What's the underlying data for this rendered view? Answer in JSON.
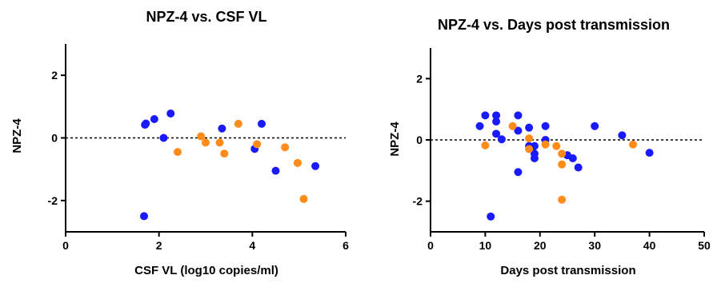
{
  "colors": {
    "group_a": "#1a1aff",
    "group_b": "#ff8c1a",
    "axis": "#000000"
  },
  "chart_data": [
    {
      "type": "scatter",
      "title": "NPZ-4 vs. CSF VL",
      "xlabel": "CSF VL (log10 copies/ml)",
      "ylabel": "NPZ-4",
      "xlim": [
        0,
        6
      ],
      "ylim": [
        -3,
        3
      ],
      "xticks": [
        0,
        2,
        4,
        6
      ],
      "yticks": [
        -2,
        0,
        2
      ],
      "reference_line": {
        "y": 0,
        "style": "dotted"
      },
      "series": [
        {
          "color": "#1a1aff",
          "points": [
            {
              "x": 1.7,
              "y": 0.42
            },
            {
              "x": 1.72,
              "y": 0.46
            },
            {
              "x": 1.9,
              "y": 0.6
            },
            {
              "x": 2.25,
              "y": 0.78
            },
            {
              "x": 2.1,
              "y": 0.0
            },
            {
              "x": 3.35,
              "y": 0.3
            },
            {
              "x": 4.2,
              "y": 0.45
            },
            {
              "x": 4.05,
              "y": -0.35
            },
            {
              "x": 4.5,
              "y": -1.05
            },
            {
              "x": 5.35,
              "y": -0.9
            },
            {
              "x": 1.68,
              "y": -2.5
            }
          ]
        },
        {
          "color": "#ff8c1a",
          "points": [
            {
              "x": 2.4,
              "y": -0.45
            },
            {
              "x": 2.9,
              "y": 0.05
            },
            {
              "x": 3.0,
              "y": -0.15
            },
            {
              "x": 3.3,
              "y": -0.15
            },
            {
              "x": 3.4,
              "y": -0.5
            },
            {
              "x": 3.7,
              "y": 0.45
            },
            {
              "x": 4.1,
              "y": -0.2
            },
            {
              "x": 4.7,
              "y": -0.3
            },
            {
              "x": 4.97,
              "y": -0.8
            },
            {
              "x": 5.1,
              "y": -1.95
            }
          ]
        }
      ]
    },
    {
      "type": "scatter",
      "title": "NPZ-4 vs. Days post transmission",
      "xlabel": "Days post transmission",
      "ylabel": "NPZ-4",
      "xlim": [
        0,
        50
      ],
      "ylim": [
        -3,
        3
      ],
      "xticks": [
        0,
        10,
        20,
        30,
        40,
        50
      ],
      "yticks": [
        -2,
        0,
        2
      ],
      "reference_line": {
        "y": 0,
        "style": "dotted"
      },
      "series": [
        {
          "color": "#1a1aff",
          "points": [
            {
              "x": 9,
              "y": 0.45
            },
            {
              "x": 10,
              "y": 0.8
            },
            {
              "x": 11,
              "y": -2.5
            },
            {
              "x": 12,
              "y": 0.8
            },
            {
              "x": 12,
              "y": 0.6
            },
            {
              "x": 12,
              "y": 0.2
            },
            {
              "x": 13,
              "y": 0.02
            },
            {
              "x": 16,
              "y": 0.8
            },
            {
              "x": 16,
              "y": 0.3
            },
            {
              "x": 16,
              "y": -1.05
            },
            {
              "x": 18,
              "y": 0.4
            },
            {
              "x": 18,
              "y": -0.2
            },
            {
              "x": 19,
              "y": -0.2
            },
            {
              "x": 19,
              "y": -0.45
            },
            {
              "x": 19,
              "y": -0.6
            },
            {
              "x": 21,
              "y": 0.45
            },
            {
              "x": 21,
              "y": 0.0
            },
            {
              "x": 25,
              "y": -0.5
            },
            {
              "x": 26,
              "y": -0.6
            },
            {
              "x": 27,
              "y": -0.9
            },
            {
              "x": 30,
              "y": 0.45
            },
            {
              "x": 35,
              "y": 0.15
            },
            {
              "x": 40,
              "y": -0.42
            }
          ]
        },
        {
          "color": "#ff8c1a",
          "points": [
            {
              "x": 10,
              "y": -0.18
            },
            {
              "x": 15,
              "y": 0.45
            },
            {
              "x": 18,
              "y": 0.05
            },
            {
              "x": 18,
              "y": -0.3
            },
            {
              "x": 21,
              "y": -0.15
            },
            {
              "x": 23,
              "y": -0.2
            },
            {
              "x": 24,
              "y": -0.45
            },
            {
              "x": 24,
              "y": -0.8
            },
            {
              "x": 24,
              "y": -1.95
            },
            {
              "x": 37,
              "y": -0.15
            }
          ]
        }
      ]
    }
  ]
}
